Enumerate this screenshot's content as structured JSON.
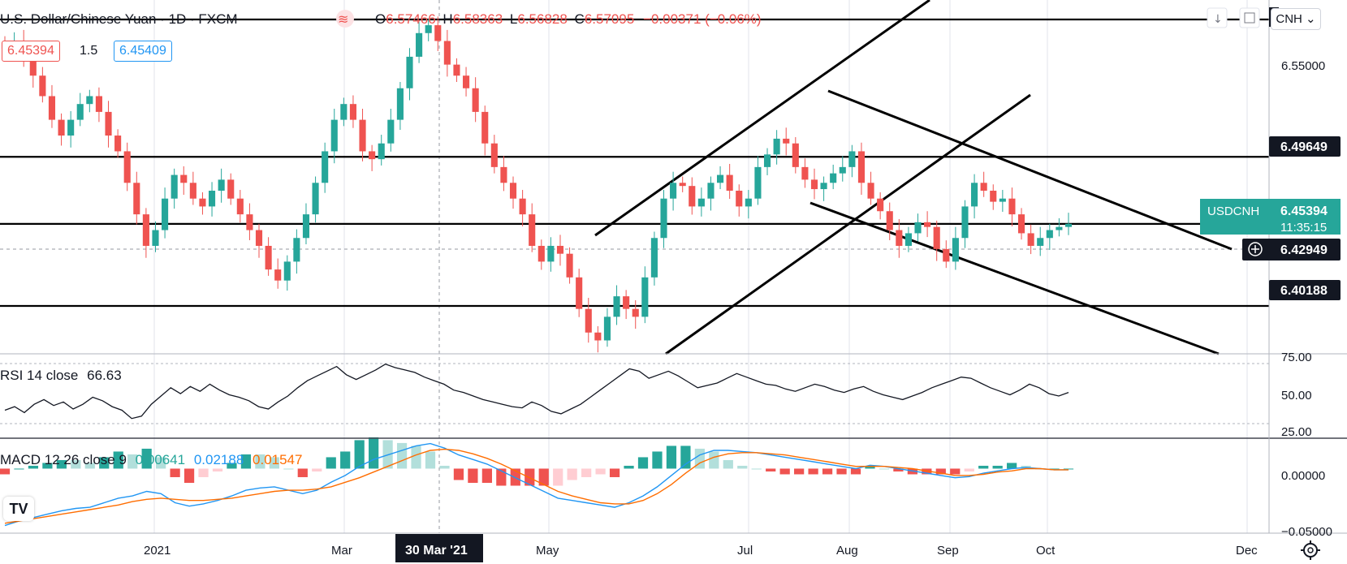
{
  "header": {
    "title": "U.S. Dollar/Chinese Yuan · 1D · FXCM",
    "open_label": "O",
    "open": "6.57466",
    "high_label": "H",
    "high": "6.58363",
    "low_label": "L",
    "low": "6.56828",
    "close_label": "C",
    "close": "6.57095",
    "change": "−0.00371 (−0.06%)"
  },
  "quote": {
    "bid": "6.45394",
    "spread": "1.5",
    "ask": "6.45409"
  },
  "currency_badge": "CNH",
  "logo_text": "TV",
  "colors": {
    "up": "#26a69a",
    "down": "#ef5350",
    "rsi": "#131722",
    "macd": "#2196f3",
    "signal": "#ff6d00"
  },
  "chart_data": [
    {
      "type": "candlestick",
      "symbol": "USDCNH",
      "ylim": [
        6.3715,
        6.596
      ],
      "price_ticks": [
        "6.55000"
      ],
      "x_labels": [
        "2021",
        "Mar",
        "May",
        "Jul",
        "Aug",
        "Sep",
        "Oct",
        "Dec"
      ],
      "cursor_x_label": "30 Mar '21",
      "horizontal_levels": [
        "6.49649",
        "6.40188"
      ],
      "top_level_partial": "6",
      "current_price_label": {
        "symbol": "USDCNH",
        "price": "6.45394",
        "countdown": "11:35:15"
      },
      "crosshair_price": "6.42949",
      "close_path": [
        6.565,
        6.57,
        6.56,
        6.548,
        6.535,
        6.52,
        6.51,
        6.52,
        6.53,
        6.535,
        6.525,
        6.51,
        6.5,
        6.48,
        6.46,
        6.44,
        6.45,
        6.47,
        6.485,
        6.48,
        6.47,
        6.465,
        6.475,
        6.482,
        6.47,
        6.46,
        6.45,
        6.44,
        6.425,
        6.418,
        6.43,
        6.445,
        6.46,
        6.48,
        6.5,
        6.52,
        6.53,
        6.52,
        6.5,
        6.495,
        6.505,
        6.52,
        6.54,
        6.56,
        6.575,
        6.58,
        6.57,
        6.555,
        6.548,
        6.54,
        6.525,
        6.505,
        6.49,
        6.48,
        6.47,
        6.46,
        6.44,
        6.43,
        6.44,
        6.435,
        6.42,
        6.4,
        6.385,
        6.38,
        6.395,
        6.408,
        6.4,
        6.395,
        6.42,
        6.445,
        6.47,
        6.48,
        6.478,
        6.465,
        6.47,
        6.48,
        6.485,
        6.475,
        6.465,
        6.47,
        6.49,
        6.498,
        6.508,
        6.505,
        6.49,
        6.482,
        6.476,
        6.48,
        6.486,
        6.49,
        6.5,
        6.48,
        6.47,
        6.462,
        6.45,
        6.44,
        6.448,
        6.455,
        6.452,
        6.438,
        6.43,
        6.445,
        6.465,
        6.48,
        6.475,
        6.468,
        6.47,
        6.46,
        6.448,
        6.44,
        6.445,
        6.45,
        6.452,
        6.454
      ]
    },
    {
      "type": "line",
      "name": "RSI",
      "legend": "RSI 14 close",
      "value_label": "66.63",
      "ylim": [
        10,
        80
      ],
      "ticks": [
        "75.00",
        "50.00",
        "25.00"
      ],
      "values": [
        33,
        36,
        31,
        38,
        42,
        37,
        40,
        34,
        38,
        44,
        41,
        36,
        33,
        26,
        28,
        38,
        45,
        52,
        47,
        53,
        49,
        55,
        50,
        46,
        44,
        41,
        36,
        34,
        40,
        45,
        52,
        58,
        62,
        66,
        70,
        63,
        59,
        63,
        67,
        72,
        69,
        67,
        65,
        61,
        58,
        55,
        50,
        48,
        45,
        42,
        40,
        38,
        36,
        35,
        40,
        37,
        32,
        30,
        34,
        38,
        44,
        50,
        56,
        62,
        68,
        66,
        60,
        63,
        66,
        62,
        57,
        52,
        54,
        56,
        60,
        64,
        61,
        58,
        55,
        54,
        51,
        49,
        52,
        55,
        53,
        50,
        48,
        51,
        53,
        49,
        46,
        44,
        42,
        45,
        48,
        52,
        55,
        58,
        61,
        60,
        56,
        52,
        49,
        46,
        50,
        55,
        52,
        47,
        45,
        48
      ]
    },
    {
      "type": "line",
      "name": "MACD",
      "legend": "MACD 12 26 close 9",
      "values_labels": [
        "0.00641",
        "0.02188",
        "0.01547"
      ],
      "ylim": [
        -0.056,
        0.026
      ],
      "ticks": [
        "0.00000",
        "−0.05000"
      ],
      "macd": [
        -0.05,
        -0.046,
        -0.043,
        -0.04,
        -0.037,
        -0.035,
        -0.034,
        -0.03,
        -0.026,
        -0.024,
        -0.02,
        -0.022,
        -0.03,
        -0.033,
        -0.031,
        -0.028,
        -0.024,
        -0.019,
        -0.017,
        -0.016,
        -0.019,
        -0.022,
        -0.019,
        -0.012,
        -0.006,
        0.002,
        0.008,
        0.012,
        0.016,
        0.02,
        0.022,
        0.018,
        0.012,
        0.008,
        0.004,
        -0.002,
        -0.008,
        -0.014,
        -0.02,
        -0.026,
        -0.028,
        -0.03,
        -0.032,
        -0.034,
        -0.03,
        -0.024,
        -0.016,
        -0.006,
        0.004,
        0.012,
        0.016,
        0.016,
        0.015,
        0.014,
        0.012,
        0.01,
        0.008,
        0.006,
        0.004,
        0.002,
        0.0,
        0.003,
        0.002,
        0.0,
        -0.002,
        -0.004,
        -0.006,
        -0.008,
        -0.007,
        -0.004,
        -0.002,
        0.0,
        0.001,
        0.0,
        -0.001,
        -0.001
      ],
      "signal": [
        -0.048,
        -0.046,
        -0.044,
        -0.042,
        -0.04,
        -0.038,
        -0.036,
        -0.034,
        -0.032,
        -0.029,
        -0.027,
        -0.026,
        -0.027,
        -0.028,
        -0.028,
        -0.027,
        -0.026,
        -0.024,
        -0.022,
        -0.02,
        -0.019,
        -0.019,
        -0.018,
        -0.016,
        -0.012,
        -0.008,
        -0.003,
        0.002,
        0.007,
        0.012,
        0.016,
        0.017,
        0.016,
        0.013,
        0.009,
        0.004,
        -0.002,
        -0.008,
        -0.014,
        -0.02,
        -0.024,
        -0.027,
        -0.03,
        -0.031,
        -0.031,
        -0.028,
        -0.022,
        -0.014,
        -0.004,
        0.005,
        0.01,
        0.013,
        0.014,
        0.014,
        0.013,
        0.012,
        0.01,
        0.008,
        0.006,
        0.004,
        0.002,
        0.002,
        0.002,
        0.001,
        0.0,
        -0.002,
        -0.004,
        -0.006,
        -0.006,
        -0.005,
        -0.003,
        -0.002,
        0.0,
        0.0,
        -0.001,
        -0.001
      ]
    }
  ]
}
